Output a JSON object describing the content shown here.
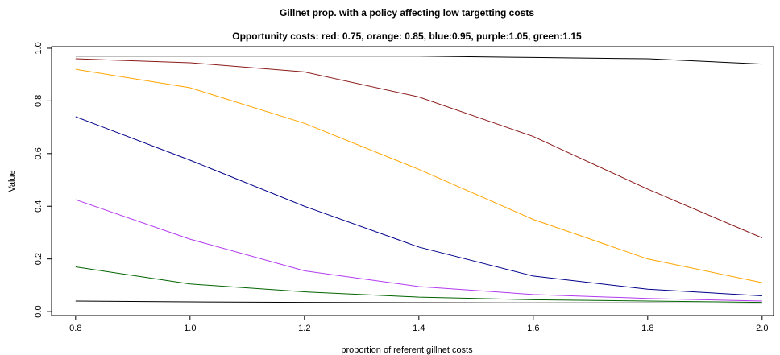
{
  "chart_data": {
    "type": "line",
    "title": "Gillnet prop. with a policy affecting low targetting costs",
    "subtitle": "Opportunity costs: red: 0.75, orange: 0.85, blue:0.95, purple:1.05, green:1.15",
    "x_label": "proportion of referent gillnet costs",
    "y_label": "Value",
    "x": [
      0.8,
      1.0,
      1.2,
      1.4,
      1.6,
      1.8,
      2.0
    ],
    "series": [
      {
        "color": "#000000",
        "values": [
          0.97,
          0.97,
          0.97,
          0.97,
          0.965,
          0.96,
          0.94
        ]
      },
      {
        "color": "#8b1a1a",
        "values": [
          0.96,
          0.945,
          0.91,
          0.815,
          0.665,
          0.465,
          0.28
        ]
      },
      {
        "color": "#ffa500",
        "values": [
          0.92,
          0.85,
          0.715,
          0.54,
          0.35,
          0.2,
          0.11
        ]
      },
      {
        "color": "#00008b",
        "values": [
          0.74,
          0.575,
          0.4,
          0.245,
          0.135,
          0.085,
          0.06
        ]
      },
      {
        "color": "#b23aee",
        "values": [
          0.425,
          0.275,
          0.155,
          0.095,
          0.065,
          0.05,
          0.04
        ]
      },
      {
        "color": "#006400",
        "values": [
          0.17,
          0.105,
          0.075,
          0.055,
          0.045,
          0.04,
          0.035
        ]
      },
      {
        "color": "#000000",
        "values": [
          0.04,
          0.037,
          0.035,
          0.034,
          0.033,
          0.033,
          0.032
        ]
      }
    ],
    "xlim": [
      0.758,
      2.02
    ],
    "ylim": [
      -0.015,
      1.006
    ],
    "xticks": [
      0.8,
      {
        "value": 1.0,
        "label": "1.0"
      },
      1.2,
      1.4,
      1.6,
      1.8,
      {
        "value": 2.0,
        "label": "2.0"
      }
    ],
    "yticks": [
      {
        "value": 0,
        "label": "0.0"
      },
      0.2,
      0.4,
      0.6,
      0.8,
      {
        "value": 1.0,
        "label": "1.0"
      }
    ]
  }
}
